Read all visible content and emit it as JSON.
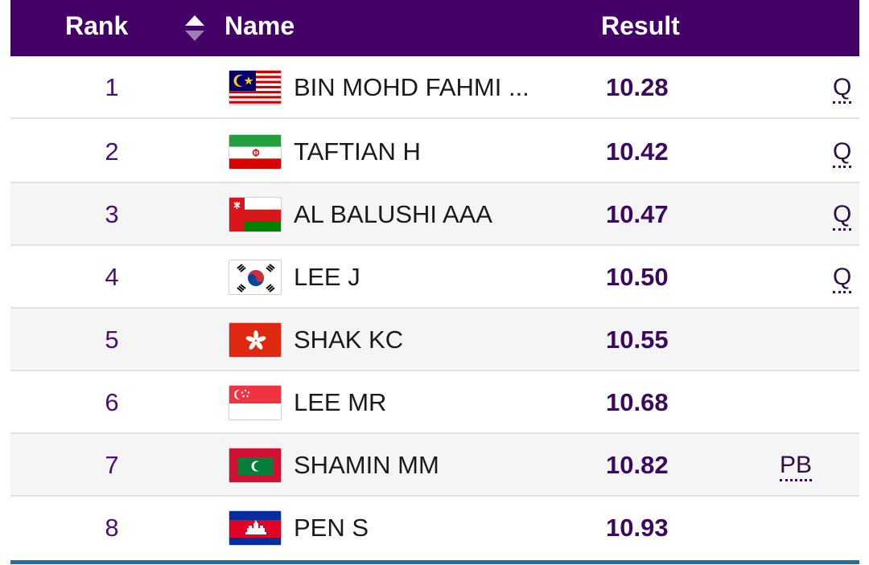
{
  "header": {
    "rank_label": "Rank",
    "name_label": "Name",
    "result_label": "Result",
    "sort_icon": "sort-up-down-icon"
  },
  "colors": {
    "header_bg": "#430168",
    "result_text": "#3b0a5e",
    "bottom_line": "#1d6fa5"
  },
  "rows": [
    {
      "rank": "1",
      "flag": "malaysia-flag-icon",
      "name": "BIN MOHD FAHMI ...",
      "result": "10.28",
      "qual": "Q"
    },
    {
      "rank": "2",
      "flag": "iran-flag-icon",
      "name": "TAFTIAN H",
      "result": "10.42",
      "qual": "Q"
    },
    {
      "rank": "3",
      "flag": "oman-flag-icon",
      "name": "AL BALUSHI AAA",
      "result": "10.47",
      "qual": "Q"
    },
    {
      "rank": "4",
      "flag": "korea-flag-icon",
      "name": "LEE J",
      "result": "10.50",
      "qual": "Q"
    },
    {
      "rank": "5",
      "flag": "hong-kong-flag-icon",
      "name": "SHAK KC",
      "result": "10.55",
      "qual": ""
    },
    {
      "rank": "6",
      "flag": "singapore-flag-icon",
      "name": "LEE MR",
      "result": "10.68",
      "qual": ""
    },
    {
      "rank": "7",
      "flag": "maldives-flag-icon",
      "name": "SHAMIN MM",
      "result": "10.82",
      "qual": "PB"
    },
    {
      "rank": "8",
      "flag": "cambodia-flag-icon",
      "name": "PEN S",
      "result": "10.93",
      "qual": ""
    }
  ]
}
